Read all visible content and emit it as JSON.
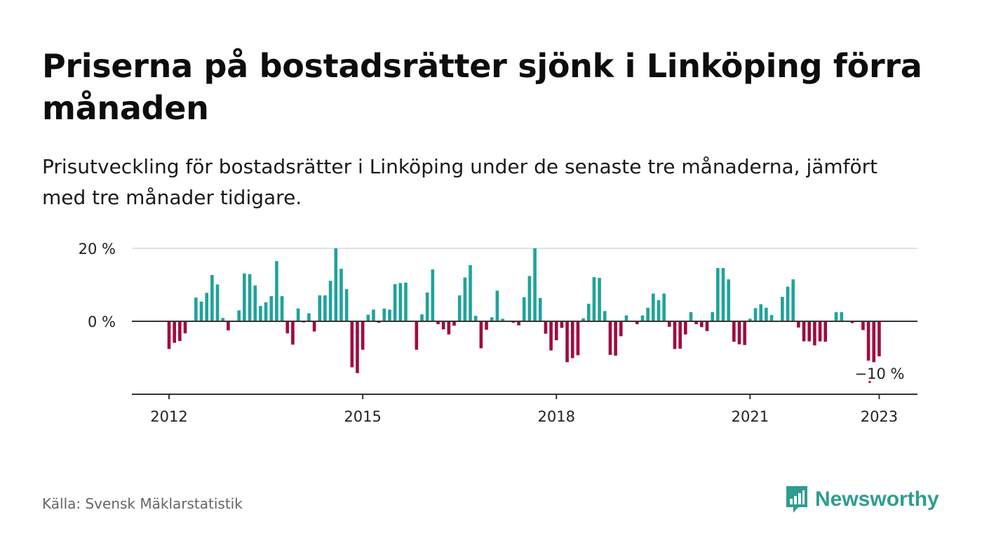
{
  "title": "Priserna på bostadsrätter sjönk i Linköping förra månaden",
  "subtitle": "Prisutveckling för bostadsrätter i Linköping under de senaste tre månaderna, jämfört med tre månader tidigare.",
  "source": "Källa: Svensk Mäklarstatistik",
  "brand": {
    "name": "Newsworthy",
    "icon": "newsworthy-logo-icon"
  },
  "colors": {
    "positive": "#1fa39a",
    "negative": "#a10a3c",
    "grid": "#d9d9d9",
    "axis": "#333333"
  },
  "chart_data": {
    "type": "bar",
    "x_start": "2012-01",
    "x_end": "2023-01",
    "x_ticks": [
      "2012",
      "2015",
      "2018",
      "2021",
      "2023"
    ],
    "y_ticks": [
      "20 %",
      "0 %"
    ],
    "ylim": [
      -20,
      20
    ],
    "grid": true,
    "annotation": {
      "label": "−10 %",
      "date": "2023-01",
      "value": -10
    },
    "values": [
      -7.6,
      -5.9,
      -5.4,
      -3.3,
      0.0,
      6.5,
      5.4,
      7.8,
      12.7,
      10.1,
      0.9,
      -2.5,
      0.0,
      3.0,
      13.1,
      12.9,
      9.8,
      4.2,
      5.2,
      6.9,
      16.5,
      6.9,
      -3.3,
      -6.4,
      3.5,
      -0.3,
      2.2,
      -2.8,
      7.1,
      7.1,
      11.1,
      20.0,
      14.4,
      8.8,
      -12.6,
      -14.2,
      -7.8,
      1.8,
      3.2,
      -0.4,
      3.5,
      3.2,
      10.2,
      10.5,
      10.6,
      0.0,
      -7.8,
      1.9,
      7.9,
      14.2,
      -0.8,
      -2.2,
      -3.6,
      -1.2,
      7.1,
      12.0,
      15.4,
      1.5,
      -7.4,
      -2.3,
      1.1,
      8.4,
      0.7,
      0.0,
      -0.4,
      -1.1,
      6.6,
      12.4,
      20.0,
      6.4,
      -3.4,
      -8.0,
      -5.2,
      -1.8,
      -11.2,
      -10.1,
      -9.3,
      0.8,
      4.8,
      12.1,
      11.9,
      2.8,
      -9.2,
      -9.4,
      -4.1,
      1.6,
      0.0,
      -0.8,
      1.6,
      3.7,
      7.6,
      5.8,
      7.6,
      -1.5,
      -7.6,
      -7.5,
      -3.6,
      2.5,
      -0.8,
      -1.6,
      -2.7,
      2.5,
      14.6,
      14.6,
      11.5,
      -5.6,
      -6.3,
      -6.5,
      0.7,
      3.6,
      4.7,
      3.7,
      1.7,
      0.0,
      6.7,
      9.5,
      11.5,
      -1.7,
      -5.5,
      -5.5,
      -6.6,
      -5.5,
      -5.6,
      0.0,
      2.5,
      2.5,
      0.0,
      -0.5,
      0.0,
      -2.4,
      -10.8,
      -11.2,
      -9.6
    ]
  }
}
